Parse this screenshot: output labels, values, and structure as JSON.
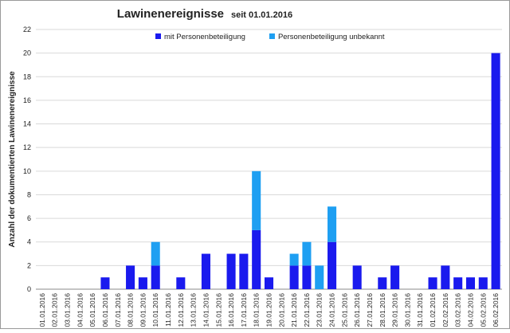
{
  "chart_data": {
    "type": "stacked_bar",
    "title": "Lawinenereignisse",
    "subtitle": "seit 01.01.2016",
    "y_label": "Anzahl der dokumentierten Lawinenereignisse",
    "categories": [
      "01.01.2016",
      "02.01.2016",
      "03.01.2016",
      "04.01.2016",
      "05.01.2016",
      "06.01.2016",
      "07.01.2016",
      "08.01.2016",
      "09.01.2016",
      "10.01.2016",
      "11.01.2016",
      "12.01.2016",
      "13.01.2016",
      "14.01.2016",
      "15.01.2016",
      "16.01.2016",
      "17.01.2016",
      "18.01.2016",
      "19.01.2016",
      "20.01.2016",
      "21.01.2016",
      "22.01.2016",
      "23.01.2016",
      "24.01.2016",
      "25.01.2016",
      "26.01.2016",
      "27.01.2016",
      "28.01.2016",
      "29.01.2016",
      "30.01.2016",
      "31.01.2016",
      "01.02.2016",
      "02.02.2016",
      "03.02.2016",
      "04.02.2016",
      "05.02.2016",
      "06.02.2016"
    ],
    "series": [
      {
        "name": "mit Personenbeteiligung",
        "color": "#1a1aee",
        "values": [
          0,
          0,
          0,
          0,
          0,
          1,
          0,
          2,
          1,
          2,
          0,
          1,
          0,
          3,
          0,
          3,
          3,
          5,
          1,
          0,
          2,
          2,
          0,
          4,
          0,
          2,
          0,
          1,
          2,
          0,
          0,
          1,
          2,
          1,
          1,
          1,
          20
        ]
      },
      {
        "name": "Personenbeteiligung unbekannt",
        "color": "#1e9ff2",
        "values": [
          0,
          0,
          0,
          0,
          0,
          0,
          0,
          0,
          0,
          2,
          0,
          0,
          0,
          0,
          0,
          0,
          0,
          5,
          0,
          0,
          1,
          2,
          2,
          3,
          0,
          0,
          0,
          0,
          0,
          0,
          0,
          0,
          0,
          0,
          0,
          0,
          0
        ]
      }
    ],
    "ylim": [
      0,
      22
    ],
    "yticks": [
      0,
      2,
      4,
      6,
      8,
      10,
      12,
      14,
      16,
      18,
      20,
      22
    ],
    "grid": true
  }
}
